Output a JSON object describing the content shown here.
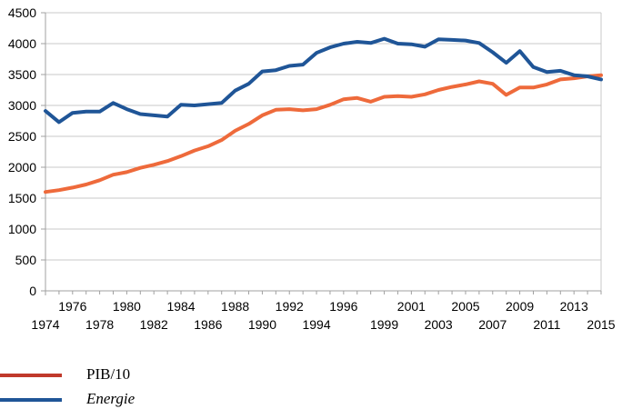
{
  "chart_data": {
    "type": "line",
    "ylim": [
      0,
      4500
    ],
    "yticks": [
      0,
      500,
      1000,
      1500,
      2000,
      2500,
      3000,
      3500,
      4000,
      4500
    ],
    "xlim": [
      1974,
      2015
    ],
    "xticks_lower": [
      1974,
      1978,
      1982,
      1986,
      1990,
      1994,
      1999,
      2003,
      2007,
      2011,
      2015
    ],
    "xticks_upper": [
      1976,
      1980,
      1984,
      1988,
      1992,
      1996,
      2001,
      2005,
      2009,
      2013
    ],
    "grid": true,
    "legend_position": "bottom-left",
    "x": [
      1974,
      1975,
      1976,
      1977,
      1978,
      1979,
      1980,
      1981,
      1982,
      1983,
      1984,
      1985,
      1986,
      1987,
      1988,
      1989,
      1990,
      1991,
      1992,
      1993,
      1994,
      1995,
      1996,
      1997,
      1998,
      1999,
      2000,
      2001,
      2002,
      2003,
      2004,
      2005,
      2006,
      2007,
      2008,
      2009,
      2010,
      2011,
      2012,
      2013,
      2014,
      2015
    ],
    "series": [
      {
        "name": "PIB/10",
        "color": "#ee6a3b",
        "values": [
          1600,
          1630,
          1670,
          1720,
          1790,
          1880,
          1920,
          1990,
          2040,
          2100,
          2180,
          2270,
          2340,
          2440,
          2590,
          2700,
          2840,
          2930,
          2940,
          2920,
          2940,
          3010,
          3100,
          3120,
          3060,
          3140,
          3150,
          3140,
          3180,
          3250,
          3300,
          3340,
          3390,
          3350,
          3170,
          3290,
          3290,
          3340,
          3420,
          3440,
          3470,
          3490
        ]
      },
      {
        "name": "Energie",
        "color": "#1f5597",
        "values": [
          2910,
          2730,
          2880,
          2900,
          2900,
          3040,
          2940,
          2860,
          2840,
          2820,
          3010,
          3000,
          3020,
          3040,
          3240,
          3350,
          3550,
          3570,
          3640,
          3660,
          3850,
          3940,
          4000,
          4030,
          4010,
          4080,
          4000,
          3990,
          3950,
          4070,
          4060,
          4050,
          4010,
          3860,
          3690,
          3880,
          3620,
          3540,
          3560,
          3490,
          3470,
          3420
        ]
      }
    ]
  }
}
